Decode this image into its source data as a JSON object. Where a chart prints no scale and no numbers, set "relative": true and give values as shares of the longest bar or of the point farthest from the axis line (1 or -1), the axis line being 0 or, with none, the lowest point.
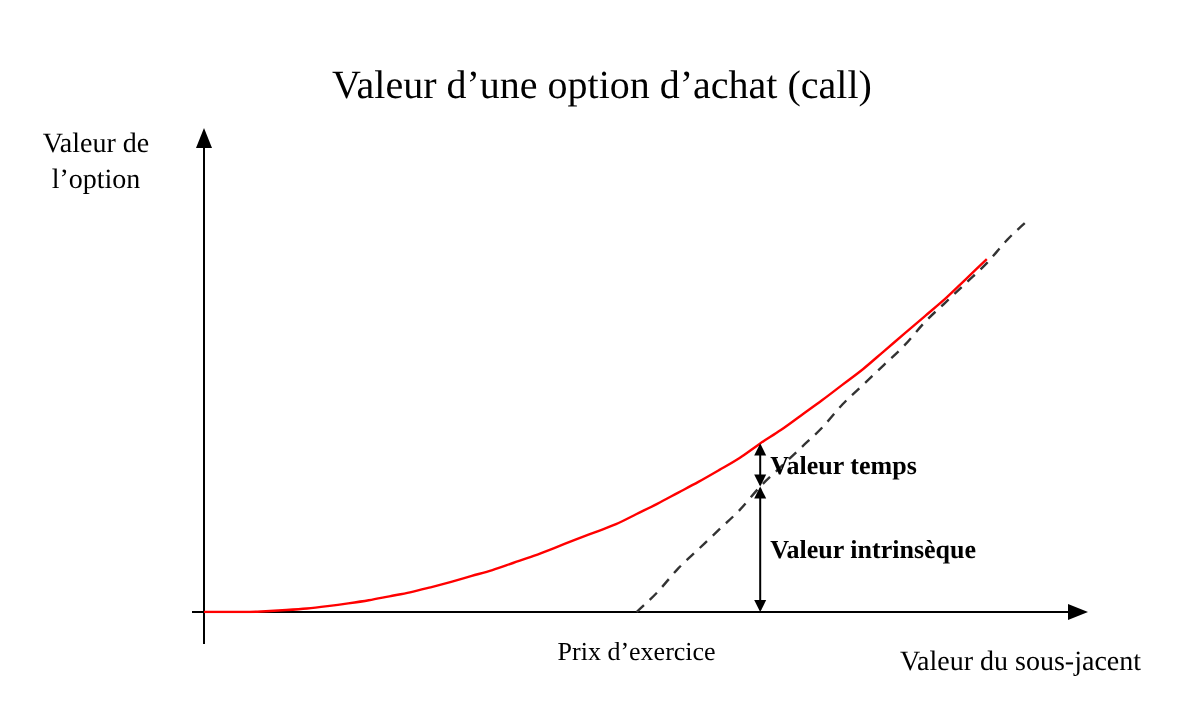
{
  "chart_data": {
    "type": "line",
    "title": "Valeur d’une option d’achat (call)",
    "xlabel": "Valeur du sous-jacent",
    "ylabel": "Valeur de l’option",
    "relative": true,
    "marker": "none",
    "categories": [
      null,
      null,
      null,
      null,
      null,
      null,
      null,
      null,
      null,
      null,
      null,
      null,
      null,
      null,
      null,
      null,
      null,
      null,
      null,
      null,
      null,
      null,
      null,
      null,
      null,
      null,
      null,
      null,
      null,
      null,
      null,
      null,
      null,
      null,
      null,
      null,
      null,
      null,
      null,
      null,
      null
    ],
    "series": [
      {
        "color": "#ff0000",
        "line_style": "solid",
        "values": [
          0,
          0,
          0,
          0.002,
          0.005,
          0.009,
          0.015,
          0.022,
          0.03,
          0.04,
          0.05,
          0.063,
          0.077,
          0.092,
          0.107,
          0.125,
          0.143,
          0.163,
          0.184,
          0.204,
          0.224,
          0.25,
          0.276,
          0.304,
          0.332,
          0.362,
          0.393,
          0.43,
          0.464,
          0.502,
          0.54,
          0.58,
          0.62,
          0.665,
          0.71,
          0.755,
          0.8,
          0.85,
          0.9,
          null,
          null
        ]
      },
      {
        "color": "#333333",
        "line_style": "dashed",
        "values": [
          null,
          null,
          null,
          null,
          null,
          null,
          null,
          null,
          null,
          null,
          null,
          null,
          null,
          null,
          null,
          null,
          null,
          null,
          null,
          null,
          null,
          0,
          0.05,
          0.11,
          0.16,
          0.21,
          0.26,
          0.32,
          0.37,
          0.42,
          0.47,
          0.53,
          0.58,
          0.63,
          0.68,
          0.74,
          0.79,
          0.84,
          0.89,
          0.95,
          1
        ]
      }
    ],
    "annotations": [
      "Prix d’exercice",
      "Valeur temps",
      "Valeur intrinsèque"
    ]
  }
}
